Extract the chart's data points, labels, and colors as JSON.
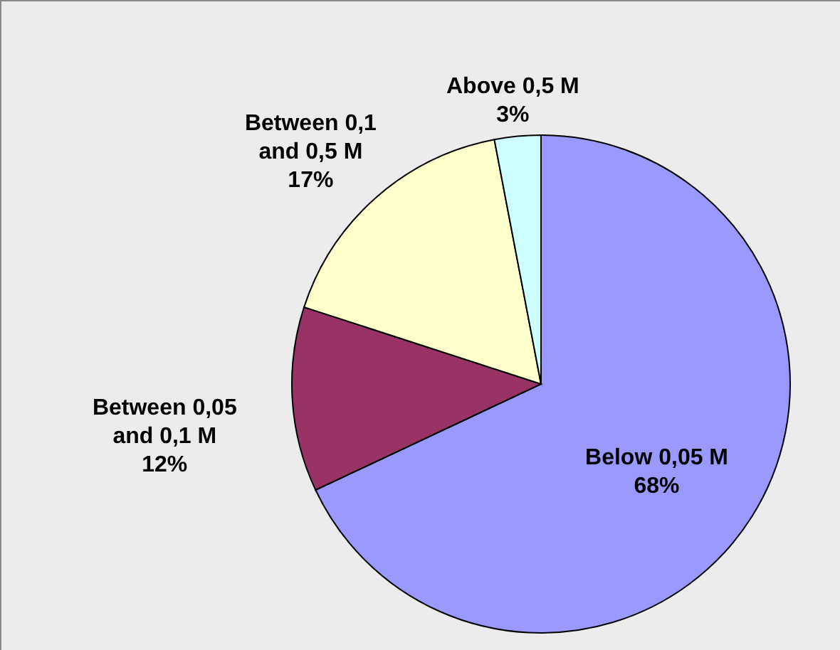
{
  "chart_data": {
    "type": "pie",
    "categories": [
      "Below 0,05 M",
      "Between 0,05 and 0,1 M",
      "Between 0,1 and 0,5 M",
      "Above 0,5 M"
    ],
    "values": [
      68,
      12,
      17,
      3
    ],
    "colors": [
      "#9999ff",
      "#993366",
      "#ffffcc",
      "#ccffff"
    ],
    "value_labels": [
      "68%",
      "12%",
      "17%",
      "3%"
    ]
  }
}
